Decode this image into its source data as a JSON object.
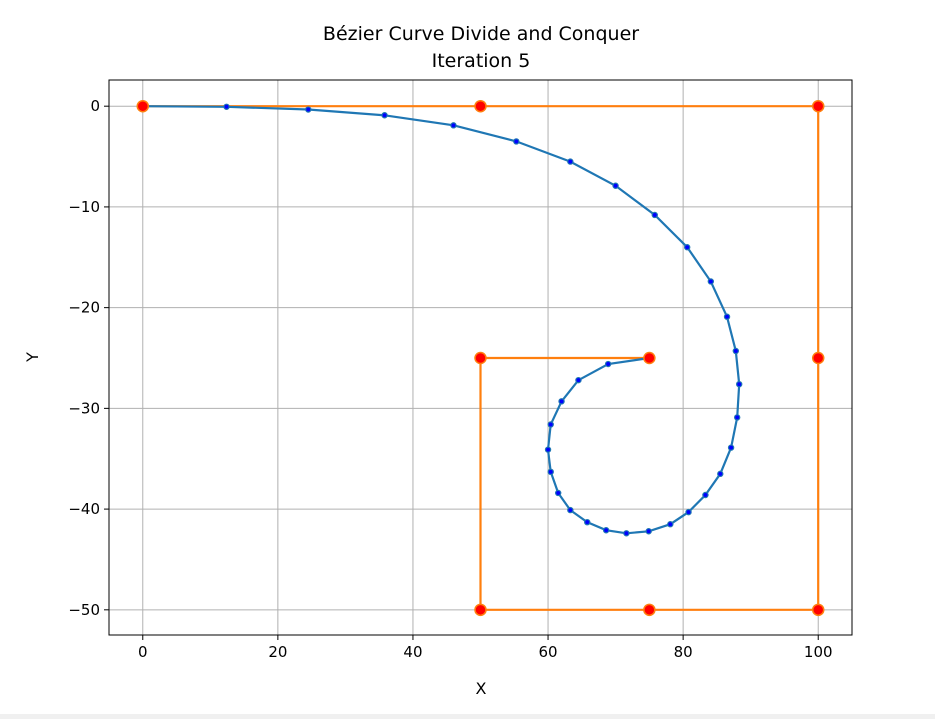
{
  "chart_data": {
    "type": "line",
    "title": "Bézier Curve Divide and Conquer",
    "subtitle": "Iteration 5",
    "xlabel": "X",
    "ylabel": "Y",
    "xlim": [
      -5,
      105
    ],
    "ylim": [
      -52.5,
      2.6
    ],
    "xticks": [
      0,
      20,
      40,
      60,
      80,
      100
    ],
    "yticks": [
      0,
      -10,
      -20,
      -30,
      -40,
      -50
    ],
    "grid": true,
    "colors": {
      "curve": "#1f77b4",
      "control_polygon": "#ff7f0e",
      "control_point_fill": "#ff0000",
      "control_point_edge": "#ff7f0e",
      "sample_point_fill": "#0000ff",
      "sample_point_edge": "#1f77b4"
    },
    "series": [
      {
        "role": "bezier-curve",
        "points": [
          [
            0,
            0
          ],
          [
            12.4,
            -0.06
          ],
          [
            24.5,
            -0.33
          ],
          [
            35.8,
            -0.9
          ],
          [
            46,
            -1.9
          ],
          [
            55.3,
            -3.5
          ],
          [
            63.3,
            -5.5
          ],
          [
            70,
            -7.9
          ],
          [
            75.8,
            -10.8
          ],
          [
            80.6,
            -14
          ],
          [
            84.1,
            -17.4
          ],
          [
            86.5,
            -20.9
          ],
          [
            87.8,
            -24.3
          ],
          [
            88.3,
            -27.6
          ],
          [
            88,
            -30.9
          ],
          [
            87.1,
            -33.9
          ],
          [
            85.5,
            -36.5
          ],
          [
            83.3,
            -38.6
          ],
          [
            80.8,
            -40.3
          ],
          [
            78.1,
            -41.5
          ],
          [
            74.9,
            -42.2
          ],
          [
            71.6,
            -42.4
          ],
          [
            68.6,
            -42.1
          ],
          [
            65.8,
            -41.3
          ],
          [
            63.3,
            -40.1
          ],
          [
            61.5,
            -38.4
          ],
          [
            60.4,
            -36.3
          ],
          [
            60,
            -34.1
          ],
          [
            60.4,
            -31.6
          ],
          [
            62,
            -29.3
          ],
          [
            64.5,
            -27.2
          ],
          [
            68.9,
            -25.6
          ],
          [
            75,
            -25
          ]
        ]
      },
      {
        "role": "control-polygon",
        "points": [
          [
            0,
            0
          ],
          [
            50,
            0
          ],
          [
            100,
            0
          ],
          [
            100,
            -25
          ],
          [
            100,
            -50
          ],
          [
            75,
            -50
          ],
          [
            50,
            -50
          ],
          [
            50,
            -25
          ],
          [
            75,
            -25
          ]
        ]
      }
    ]
  }
}
